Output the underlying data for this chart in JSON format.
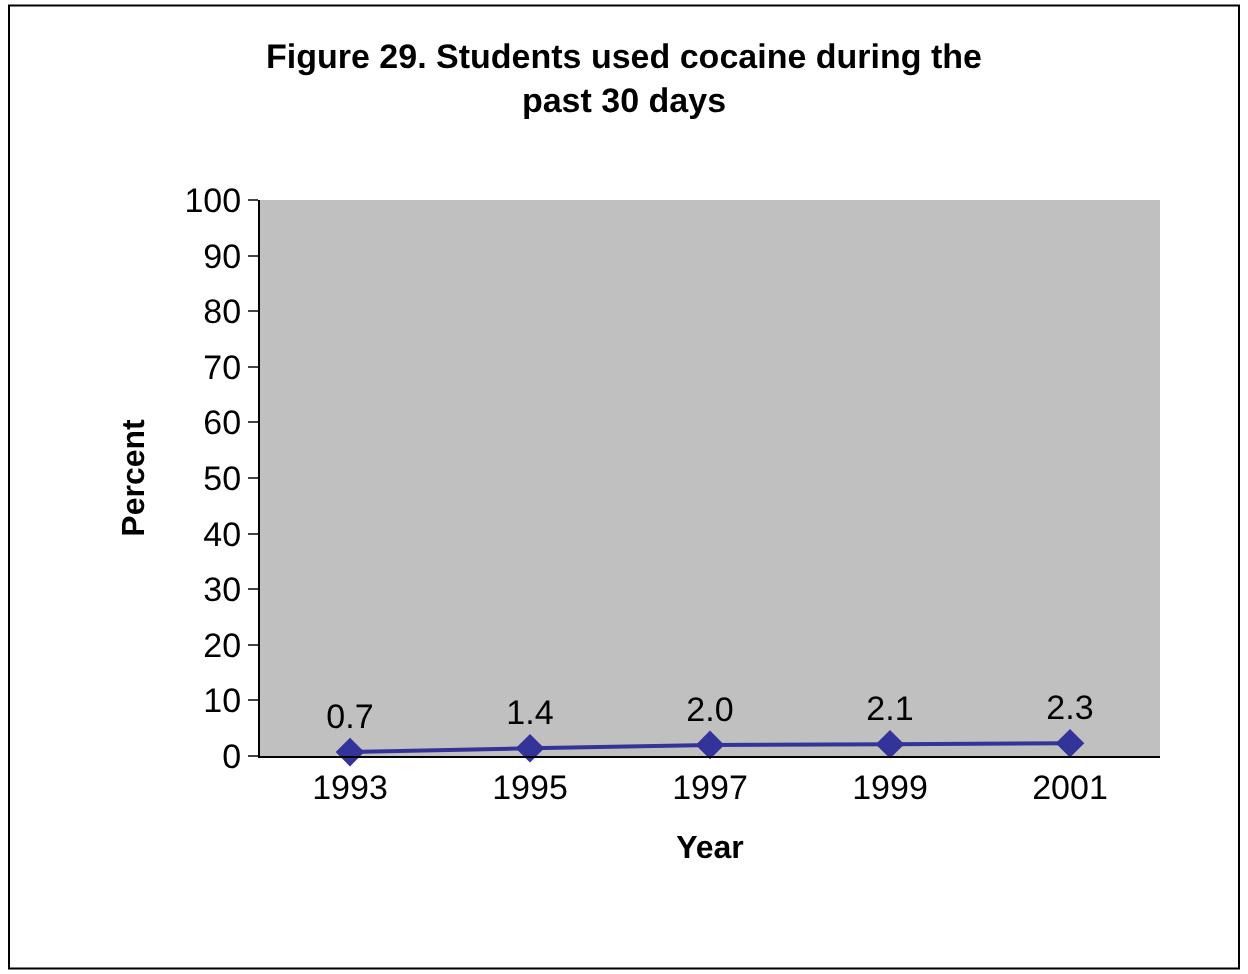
{
  "chart_data": {
    "type": "line",
    "title": "Figure 29. Students used cocaine during the past 30 days",
    "xlabel": "Year",
    "ylabel": "Percent",
    "categories": [
      "1993",
      "1995",
      "1997",
      "1999",
      "2001"
    ],
    "series": [
      {
        "color": "#333399",
        "values": [
          0.7,
          1.4,
          2.0,
          2.1,
          2.3
        ],
        "value_labels": [
          "0.7",
          "1.4",
          "2.0",
          "2.1",
          "2.3"
        ]
      }
    ],
    "ylim": [
      0,
      100
    ],
    "yticks": [
      0,
      10,
      20,
      30,
      40,
      50,
      60,
      70,
      80,
      90,
      100
    ],
    "marker": "diamond",
    "line_style": "solid"
  }
}
